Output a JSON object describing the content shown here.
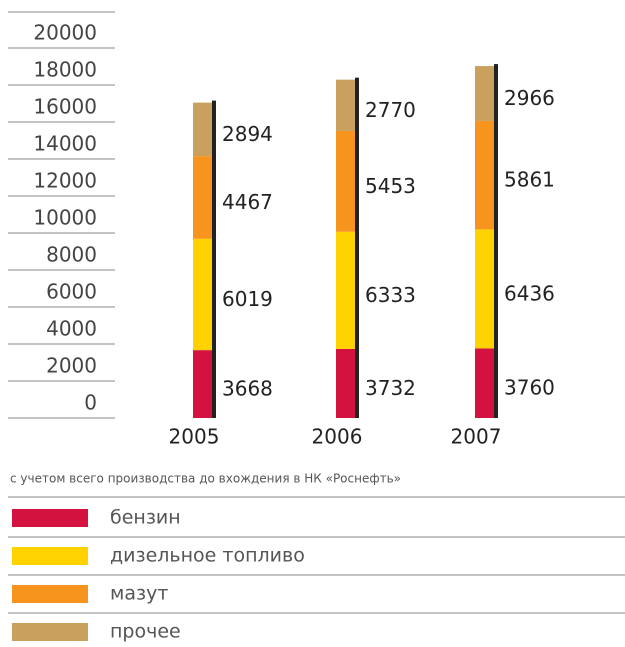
{
  "chart_data": {
    "type": "stacked_bar",
    "categories": [
      "2005",
      "2006",
      "2007"
    ],
    "series": [
      {
        "name": "бензин",
        "color": "#d4123f",
        "values": [
          3668,
          3732,
          3760
        ]
      },
      {
        "name": "дизельное топливо",
        "color": "#ffd200",
        "values": [
          6019,
          6333,
          6436
        ]
      },
      {
        "name": "мазут",
        "color": "#f7941d",
        "values": [
          4467,
          5453,
          5861
        ]
      },
      {
        "name": "прочее",
        "color": "#c9a05e",
        "values": [
          2894,
          2770,
          2966
        ]
      }
    ],
    "ylim": [
      0,
      20000
    ],
    "yticks": [
      0,
      2000,
      4000,
      6000,
      8000,
      10000,
      12000,
      14000,
      16000,
      18000,
      20000
    ],
    "note": "с учетом всего производства до вхождения в НК «Роснефть»"
  }
}
